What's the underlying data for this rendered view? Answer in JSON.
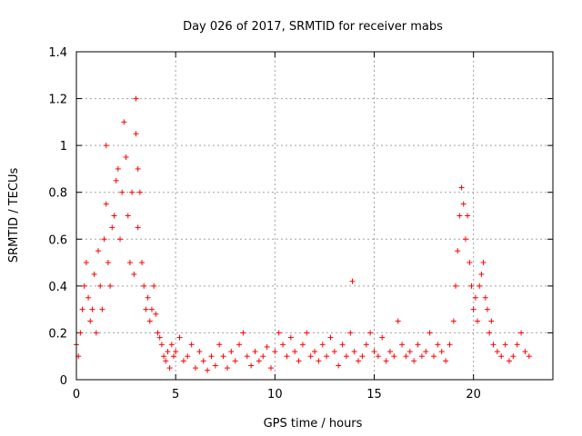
{
  "chart_data": {
    "type": "scatter",
    "title": "Day 026 of 2017, SRMTID for receiver mabs",
    "xlabel": "GPS time / hours",
    "ylabel": "SRMTID / TECUs",
    "xlim": [
      0,
      24
    ],
    "ylim": [
      0,
      1.4
    ],
    "xticks": [
      0,
      5,
      10,
      15,
      20
    ],
    "xtick_labels": [
      "0",
      "5",
      "10",
      "15",
      "20"
    ],
    "yticks": [
      0,
      0.2,
      0.4,
      0.6,
      0.8,
      1.0,
      1.2,
      1.4
    ],
    "ytick_labels": [
      "0",
      "0.2",
      "0.4",
      "0.6",
      "0.8",
      "1",
      "1.2",
      "1.4"
    ],
    "grid": true,
    "marker": "+",
    "series": [
      {
        "name": "SRMTID",
        "color": "#ff0000",
        "x": [
          0.0,
          0.1,
          0.2,
          0.3,
          0.4,
          0.5,
          0.6,
          0.7,
          0.8,
          0.9,
          1.0,
          1.1,
          1.2,
          1.3,
          1.4,
          1.5,
          1.5,
          1.6,
          1.7,
          1.8,
          1.9,
          2.0,
          2.1,
          2.2,
          2.3,
          2.4,
          2.5,
          2.6,
          2.7,
          2.8,
          2.9,
          3.0,
          3.0,
          3.1,
          3.1,
          3.2,
          3.3,
          3.4,
          3.5,
          3.6,
          3.7,
          3.8,
          3.9,
          4.0,
          4.1,
          4.2,
          4.3,
          4.4,
          4.5,
          4.6,
          4.7,
          4.8,
          4.9,
          5.0,
          5.2,
          5.4,
          5.6,
          5.8,
          6.0,
          6.2,
          6.4,
          6.6,
          6.8,
          7.0,
          7.2,
          7.4,
          7.6,
          7.8,
          8.0,
          8.2,
          8.4,
          8.6,
          8.8,
          9.0,
          9.2,
          9.4,
          9.6,
          9.8,
          10.0,
          10.2,
          10.4,
          10.6,
          10.8,
          11.0,
          11.2,
          11.4,
          11.6,
          11.8,
          12.0,
          12.2,
          12.4,
          12.6,
          12.8,
          13.0,
          13.2,
          13.4,
          13.6,
          13.8,
          13.9,
          14.0,
          14.2,
          14.4,
          14.6,
          14.8,
          15.0,
          15.2,
          15.4,
          15.6,
          15.8,
          16.0,
          16.2,
          16.4,
          16.6,
          16.8,
          17.0,
          17.2,
          17.4,
          17.6,
          17.8,
          18.0,
          18.2,
          18.4,
          18.6,
          18.8,
          19.0,
          19.1,
          19.2,
          19.3,
          19.4,
          19.5,
          19.6,
          19.7,
          19.8,
          19.9,
          20.0,
          20.1,
          20.2,
          20.3,
          20.4,
          20.5,
          20.6,
          20.7,
          20.8,
          20.9,
          21.0,
          21.2,
          21.4,
          21.6,
          21.8,
          22.0,
          22.2,
          22.4,
          22.6,
          22.8
        ],
        "y": [
          0.15,
          0.1,
          0.2,
          0.3,
          0.4,
          0.5,
          0.35,
          0.25,
          0.3,
          0.45,
          0.2,
          0.55,
          0.4,
          0.3,
          0.6,
          1.0,
          0.75,
          0.5,
          0.4,
          0.65,
          0.7,
          0.85,
          0.9,
          0.6,
          0.8,
          1.1,
          0.95,
          0.7,
          0.5,
          0.8,
          0.45,
          1.2,
          1.05,
          0.9,
          0.65,
          0.8,
          0.5,
          0.4,
          0.3,
          0.35,
          0.25,
          0.3,
          0.4,
          0.28,
          0.2,
          0.18,
          0.15,
          0.1,
          0.08,
          0.12,
          0.05,
          0.15,
          0.1,
          0.12,
          0.18,
          0.08,
          0.1,
          0.15,
          0.05,
          0.12,
          0.08,
          0.04,
          0.1,
          0.06,
          0.15,
          0.1,
          0.05,
          0.12,
          0.08,
          0.15,
          0.2,
          0.1,
          0.06,
          0.12,
          0.08,
          0.1,
          0.14,
          0.05,
          0.12,
          0.2,
          0.15,
          0.1,
          0.18,
          0.12,
          0.08,
          0.15,
          0.2,
          0.1,
          0.12,
          0.08,
          0.15,
          0.1,
          0.18,
          0.12,
          0.06,
          0.15,
          0.1,
          0.2,
          0.42,
          0.12,
          0.08,
          0.1,
          0.15,
          0.2,
          0.12,
          0.1,
          0.18,
          0.08,
          0.12,
          0.1,
          0.25,
          0.15,
          0.1,
          0.12,
          0.08,
          0.15,
          0.1,
          0.12,
          0.2,
          0.1,
          0.15,
          0.12,
          0.08,
          0.15,
          0.25,
          0.4,
          0.55,
          0.7,
          0.82,
          0.75,
          0.6,
          0.7,
          0.5,
          0.4,
          0.3,
          0.35,
          0.25,
          0.4,
          0.45,
          0.5,
          0.35,
          0.3,
          0.2,
          0.25,
          0.15,
          0.12,
          0.1,
          0.15,
          0.08,
          0.1,
          0.15,
          0.2,
          0.12,
          0.1
        ]
      }
    ]
  }
}
